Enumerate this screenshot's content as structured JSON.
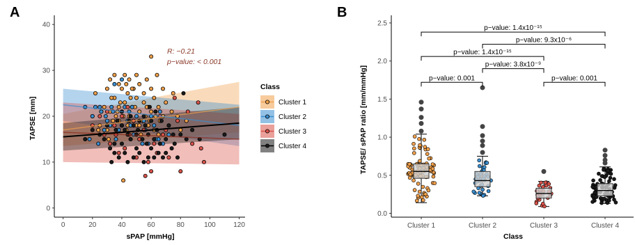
{
  "colors": {
    "Cluster 1": "#f0a04b",
    "Cluster 2": "#3b8fd0",
    "Cluster 3": "#d9534a",
    "Cluster 4": "#1a1a1a",
    "annotation": "#8b3a2a"
  },
  "chart_data": [
    {
      "type": "scatter",
      "panel": "A",
      "xlabel": "sPAP [mmHg]",
      "ylabel": "TAPSE [mm]",
      "xlim": [
        -6,
        124
      ],
      "ylim": [
        -2,
        42
      ],
      "xticks": [
        0,
        20,
        40,
        60,
        80,
        100,
        120
      ],
      "yticks": [
        0,
        10,
        20,
        30,
        40
      ],
      "annotation": {
        "r": "R: −0.21",
        "p": "p−value: < 0.001"
      },
      "legend": {
        "title": "Class",
        "placement": "right"
      },
      "fit_lines": [
        {
          "name": "Cluster 1",
          "x0": 0,
          "y0": 17.0,
          "x1": 120,
          "y1": 22.0,
          "band0": 3.5,
          "band1": 5.5
        },
        {
          "name": "Cluster 2",
          "x0": 0,
          "y0": 22.5,
          "x1": 120,
          "y1": 18.0,
          "band0": 3.5,
          "band1": 4.5
        },
        {
          "name": "Cluster 3",
          "x0": 0,
          "y0": 16.5,
          "x1": 120,
          "y1": 15.0,
          "band0": 6.5,
          "band1": 5.5
        },
        {
          "name": "Cluster 4",
          "x0": 0,
          "y0": 15.5,
          "x1": 120,
          "y1": 18.5,
          "band0": 3.0,
          "band1": 3.5
        }
      ],
      "series": [
        {
          "name": "Cluster 1",
          "points": [
            [
              20,
              20
            ],
            [
              22,
              25
            ],
            [
              25,
              18
            ],
            [
              28,
              22
            ],
            [
              30,
              26
            ],
            [
              30,
              17
            ],
            [
              32,
              28
            ],
            [
              32,
              21
            ],
            [
              34,
              19
            ],
            [
              35,
              29
            ],
            [
              35,
              24
            ],
            [
              36,
              16
            ],
            [
              38,
              27
            ],
            [
              38,
              22
            ],
            [
              40,
              18
            ],
            [
              40,
              26
            ],
            [
              40,
              21
            ],
            [
              42,
              29
            ],
            [
              42,
              23
            ],
            [
              43,
              17
            ],
            [
              44,
              25
            ],
            [
              45,
              20
            ],
            [
              45,
              28
            ],
            [
              46,
              15
            ],
            [
              47,
              22
            ],
            [
              48,
              26
            ],
            [
              48,
              19
            ],
            [
              50,
              24
            ],
            [
              50,
              18
            ],
            [
              50,
              29
            ],
            [
              52,
              21
            ],
            [
              52,
              27
            ],
            [
              53,
              16
            ],
            [
              55,
              23
            ],
            [
              55,
              25
            ],
            [
              56,
              20
            ],
            [
              57,
              28
            ],
            [
              58,
              22
            ],
            [
              58,
              18
            ],
            [
              60,
              26
            ],
            [
              60,
              21
            ],
            [
              60,
              33
            ],
            [
              62,
              24
            ],
            [
              62,
              17
            ],
            [
              64,
              29
            ],
            [
              65,
              22
            ],
            [
              66,
              19
            ],
            [
              68,
              26
            ],
            [
              68,
              20
            ],
            [
              70,
              23
            ],
            [
              72,
              18
            ],
            [
              74,
              21
            ],
            [
              75,
              25
            ],
            [
              78,
              20
            ],
            [
              80,
              17
            ],
            [
              84,
              19
            ],
            [
              38,
              19
            ],
            [
              41,
              20
            ],
            [
              33,
              24
            ],
            [
              46,
              24
            ],
            [
              54,
              19
            ],
            [
              63,
              20
            ],
            [
              37,
              21
            ],
            [
              44,
              18
            ],
            [
              49,
              22
            ],
            [
              41,
              6
            ],
            [
              57,
              22
            ],
            [
              59,
              19
            ],
            [
              36,
              20
            ],
            [
              26,
              21
            ],
            [
              31,
              15
            ],
            [
              52,
              18
            ],
            [
              24,
              17
            ],
            [
              65,
              16
            ],
            [
              47,
              26
            ],
            [
              39,
              23
            ],
            [
              43,
              27
            ]
          ]
        },
        {
          "name": "Cluster 2",
          "points": [
            [
              15,
              22
            ],
            [
              18,
              15
            ],
            [
              20,
              20
            ],
            [
              22,
              22
            ],
            [
              24,
              14
            ],
            [
              25,
              22
            ],
            [
              26,
              21
            ],
            [
              28,
              17
            ],
            [
              30,
              19
            ],
            [
              32,
              18
            ],
            [
              34,
              21
            ],
            [
              35,
              27
            ],
            [
              36,
              15
            ],
            [
              38,
              17
            ],
            [
              40,
              28
            ],
            [
              40,
              21
            ],
            [
              42,
              22
            ],
            [
              44,
              19
            ],
            [
              45,
              21
            ],
            [
              46,
              18
            ],
            [
              48,
              16
            ],
            [
              50,
              20
            ],
            [
              52,
              15
            ],
            [
              54,
              14
            ],
            [
              55,
              19
            ],
            [
              56,
              17
            ],
            [
              58,
              14
            ],
            [
              60,
              20
            ],
            [
              62,
              18
            ],
            [
              65,
              15
            ],
            [
              66,
              21
            ],
            [
              68,
              14
            ],
            [
              72,
              16
            ],
            [
              63,
              15
            ],
            [
              33,
              22
            ],
            [
              29,
              20
            ],
            [
              47,
              22
            ]
          ]
        },
        {
          "name": "Cluster 3",
          "points": [
            [
              20,
              18
            ],
            [
              25,
              20
            ],
            [
              28,
              16
            ],
            [
              30,
              21
            ],
            [
              32,
              14
            ],
            [
              35,
              18
            ],
            [
              38,
              12
            ],
            [
              40,
              20
            ],
            [
              42,
              13
            ],
            [
              45,
              16
            ],
            [
              48,
              19
            ],
            [
              50,
              11
            ],
            [
              52,
              15
            ],
            [
              55,
              17
            ],
            [
              58,
              10
            ],
            [
              60,
              8
            ],
            [
              62,
              14
            ],
            [
              64,
              12
            ],
            [
              66,
              20
            ],
            [
              70,
              17
            ],
            [
              72,
              11
            ],
            [
              76,
              24
            ],
            [
              78,
              19
            ],
            [
              80,
              8
            ],
            [
              85,
              21
            ],
            [
              88,
              14
            ],
            [
              92,
              23
            ],
            [
              94,
              13
            ],
            [
              96,
              10
            ],
            [
              56,
              7
            ],
            [
              44,
              22
            ],
            [
              36,
              16
            ],
            [
              68,
              16
            ]
          ]
        },
        {
          "name": "Cluster 4",
          "points": [
            [
              15,
              15
            ],
            [
              20,
              17
            ],
            [
              25,
              16
            ],
            [
              28,
              15
            ],
            [
              30,
              18
            ],
            [
              32,
              13
            ],
            [
              33,
              10
            ],
            [
              35,
              12
            ],
            [
              36,
              17
            ],
            [
              38,
              11
            ],
            [
              40,
              18
            ],
            [
              40,
              14
            ],
            [
              42,
              12
            ],
            [
              42,
              17
            ],
            [
              44,
              10
            ],
            [
              45,
              19
            ],
            [
              46,
              15
            ],
            [
              48,
              11
            ],
            [
              48,
              18
            ],
            [
              50,
              13
            ],
            [
              50,
              16
            ],
            [
              52,
              12
            ],
            [
              52,
              19
            ],
            [
              54,
              15
            ],
            [
              55,
              10
            ],
            [
              56,
              18
            ],
            [
              58,
              11
            ],
            [
              58,
              16
            ],
            [
              60,
              13
            ],
            [
              60,
              19
            ],
            [
              62,
              11
            ],
            [
              62,
              15
            ],
            [
              64,
              17
            ],
            [
              65,
              12
            ],
            [
              66,
              14
            ],
            [
              68,
              11
            ],
            [
              70,
              15
            ],
            [
              70,
              12
            ],
            [
              72,
              18
            ],
            [
              74,
              13
            ],
            [
              75,
              16
            ],
            [
              76,
              14
            ],
            [
              78,
              11
            ],
            [
              80,
              16
            ],
            [
              82,
              25
            ],
            [
              84,
              15
            ],
            [
              88,
              17
            ],
            [
              93,
              15
            ],
            [
              110,
              16
            ],
            [
              40,
              21
            ],
            [
              46,
              20
            ],
            [
              55,
              20
            ],
            [
              63,
              21
            ],
            [
              35,
              14
            ],
            [
              57,
              14
            ],
            [
              67,
              19
            ],
            [
              44,
              16
            ],
            [
              51,
              17
            ],
            [
              37,
              19
            ],
            [
              59,
              22
            ]
          ]
        }
      ]
    },
    {
      "type": "box",
      "panel": "B",
      "xlabel": "Class",
      "ylabel": "TAPSE/ sPAP ratio [mm/mmHg]",
      "categories": [
        "Cluster 1",
        "Cluster 2",
        "Cluster 3",
        "Cluster 4"
      ],
      "ylim": [
        -0.05,
        2.6
      ],
      "yticks": [
        "0.0",
        "0.5",
        "1.0",
        "1.5",
        "2.0",
        "2.5"
      ],
      "boxes": [
        {
          "name": "Cluster 1",
          "q1": 0.46,
          "median": 0.55,
          "q3": 0.65,
          "whisker_low": 0.14,
          "whisker_high": 1.04,
          "outliers": [
            1.08,
            1.18,
            1.26,
            1.37,
            1.46
          ]
        },
        {
          "name": "Cluster 2",
          "q1": 0.35,
          "median": 0.43,
          "q3": 0.55,
          "whisker_low": 0.23,
          "whisker_high": 0.75,
          "outliers": [
            0.8,
            0.89,
            0.95,
            1.02,
            1.14,
            1.65
          ]
        },
        {
          "name": "Cluster 3",
          "q1": 0.2,
          "median": 0.26,
          "q3": 0.33,
          "whisker_low": 0.09,
          "whisker_high": 0.42,
          "outliers": [
            0.55
          ]
        },
        {
          "name": "Cluster 4",
          "q1": 0.23,
          "median": 0.3,
          "q3": 0.39,
          "whisker_low": 0.13,
          "whisker_high": 0.61,
          "outliers": [
            0.66,
            0.7,
            0.76,
            0.83
          ]
        }
      ],
      "comparisons": [
        {
          "from": 1,
          "to": 4,
          "y": 2.38,
          "label": "p−value: 1.4x10⁻¹⁵"
        },
        {
          "from": 2,
          "to": 4,
          "y": 2.22,
          "label": "p−value: 9.3x10⁻⁶"
        },
        {
          "from": 1,
          "to": 3,
          "y": 2.06,
          "label": "p−value: 1.4x10⁻¹⁵"
        },
        {
          "from": 2,
          "to": 3,
          "y": 1.9,
          "label": "p−value: 3.8x10⁻⁹"
        },
        {
          "from": 1,
          "to": 2,
          "y": 1.72,
          "label": "p−value: 0.001"
        },
        {
          "from": 3,
          "to": 4,
          "y": 1.72,
          "label": "p−value: 0.001"
        }
      ]
    }
  ],
  "panel_labels": [
    "A",
    "B"
  ]
}
